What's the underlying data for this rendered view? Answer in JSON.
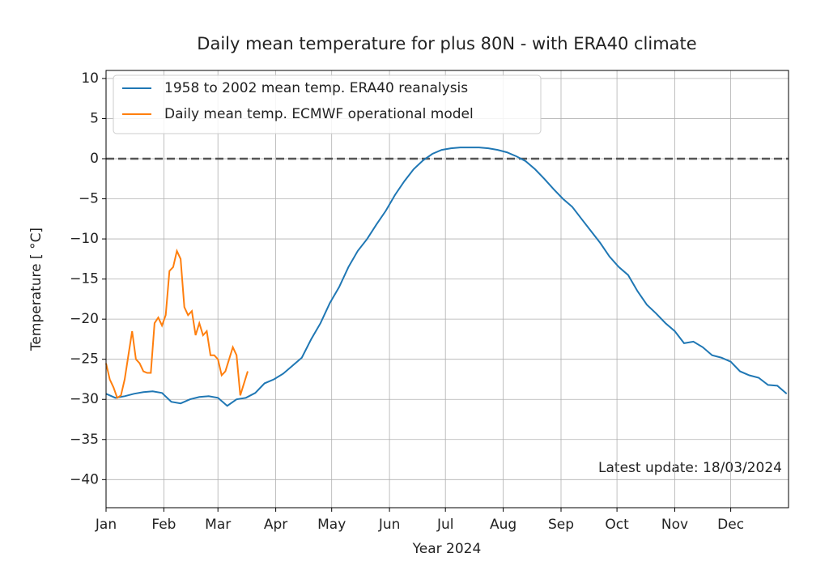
{
  "chart_data": {
    "type": "line",
    "title": "Daily mean temperature for plus 80N - with ERA40 climate",
    "x_label": "Year 2024",
    "y_label": "Temperature [ °C]",
    "annotation": "Latest update: 18/03/2024",
    "xlim": [
      0,
      366
    ],
    "xticks": [
      {
        "value": 0,
        "label": "Jan"
      },
      {
        "value": 31,
        "label": "Feb"
      },
      {
        "value": 60,
        "label": "Mar"
      },
      {
        "value": 91,
        "label": "Apr"
      },
      {
        "value": 121,
        "label": "May"
      },
      {
        "value": 152,
        "label": "Jun"
      },
      {
        "value": 182,
        "label": "Jul"
      },
      {
        "value": 213,
        "label": "Aug"
      },
      {
        "value": 244,
        "label": "Sep"
      },
      {
        "value": 274,
        "label": "Oct"
      },
      {
        "value": 305,
        "label": "Nov"
      },
      {
        "value": 335,
        "label": "Dec"
      }
    ],
    "ylim": [
      -43.5,
      11
    ],
    "yticks": [
      10,
      5,
      0,
      {
        "value": -5,
        "label": "−5"
      },
      {
        "value": -10,
        "label": "−10"
      },
      {
        "value": -15,
        "label": "−15"
      },
      {
        "value": -20,
        "label": "−20"
      },
      {
        "value": -25,
        "label": "−25"
      },
      {
        "value": -30,
        "label": "−30"
      },
      {
        "value": -35,
        "label": "−35"
      },
      {
        "value": -40,
        "label": "−40"
      }
    ],
    "grid": true,
    "reference_line": 0,
    "legend": "upper left",
    "series": [
      {
        "name": "1958 to 2002 mean temp. ERA40 reanalysis",
        "color": "#1f77b4",
        "x": [
          0,
          5,
          10,
          15,
          20,
          25,
          30,
          35,
          40,
          45,
          50,
          55,
          60,
          65,
          70,
          75,
          80,
          85,
          90,
          95,
          100,
          105,
          110,
          115,
          120,
          125,
          130,
          135,
          140,
          145,
          150,
          155,
          160,
          165,
          170,
          175,
          180,
          185,
          190,
          195,
          200,
          205,
          210,
          215,
          220,
          225,
          230,
          235,
          240,
          245,
          250,
          255,
          260,
          265,
          270,
          275,
          280,
          285,
          290,
          295,
          300,
          305,
          310,
          315,
          320,
          325,
          330,
          335,
          340,
          345,
          350,
          355,
          360,
          365
        ],
        "values": [
          -29.3,
          -29.8,
          -29.6,
          -29.3,
          -29.1,
          -29.0,
          -29.2,
          -30.3,
          -30.5,
          -30.0,
          -29.7,
          -29.6,
          -29.8,
          -30.8,
          -30.0,
          -29.8,
          -29.2,
          -28.0,
          -27.5,
          -26.8,
          -25.8,
          -24.8,
          -22.5,
          -20.5,
          -18.0,
          -16.0,
          -13.5,
          -11.5,
          -10.0,
          -8.2,
          -6.5,
          -4.5,
          -2.8,
          -1.3,
          -0.2,
          0.6,
          1.1,
          1.3,
          1.4,
          1.4,
          1.4,
          1.3,
          1.1,
          0.8,
          0.3,
          -0.3,
          -1.3,
          -2.5,
          -3.8,
          -5.0,
          -6.0,
          -7.5,
          -9.0,
          -10.5,
          -12.2,
          -13.5,
          -14.5,
          -16.5,
          -18.2,
          -19.3,
          -20.5,
          -21.5,
          -23.0,
          -22.8,
          -23.5,
          -24.5,
          -24.8,
          -25.3,
          -26.5,
          -27.0,
          -27.3,
          -28.2,
          -28.3,
          -29.3
        ]
      },
      {
        "name": "Daily mean temp. ECMWF operational model",
        "color": "#ff7f0e",
        "x": [
          0,
          2,
          4,
          6,
          8,
          10,
          12,
          14,
          16,
          18,
          20,
          22,
          24,
          26,
          28,
          30,
          32,
          34,
          36,
          38,
          40,
          42,
          44,
          46,
          48,
          50,
          52,
          54,
          56,
          58,
          60,
          62,
          64,
          66,
          68,
          70,
          72,
          74,
          76
        ],
        "values": [
          -25.5,
          -27.5,
          -28.5,
          -29.8,
          -29.5,
          -27.5,
          -24.5,
          -21.5,
          -25.0,
          -25.5,
          -26.5,
          -26.7,
          -26.7,
          -20.5,
          -19.8,
          -20.8,
          -19.5,
          -14.0,
          -13.5,
          -11.5,
          -12.5,
          -18.5,
          -19.5,
          -19.0,
          -22.0,
          -20.5,
          -22.0,
          -21.5,
          -24.5,
          -24.5,
          -25.0,
          -27.0,
          -26.5,
          -25.0,
          -23.5,
          -24.5,
          -29.5,
          -28.0,
          -26.5
        ]
      }
    ]
  }
}
